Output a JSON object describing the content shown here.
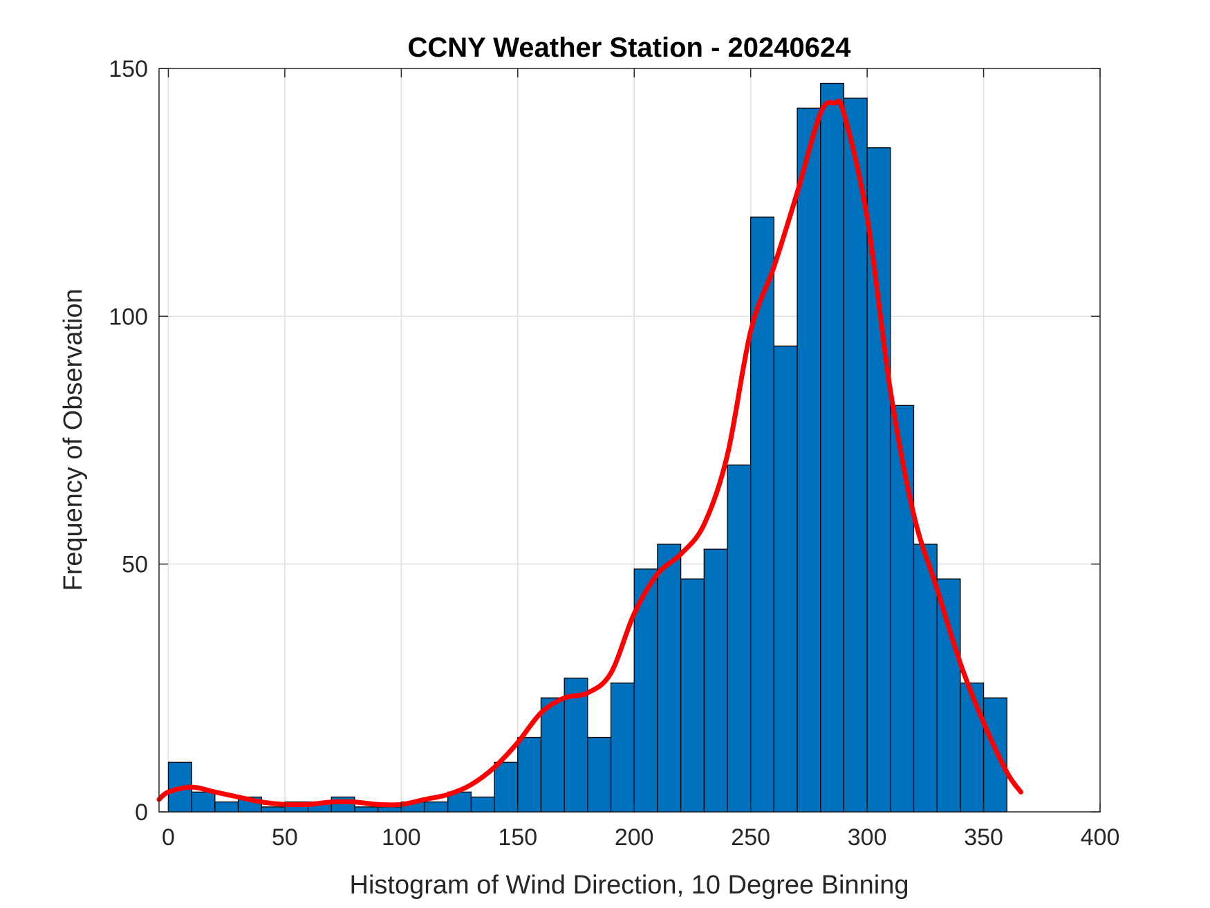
{
  "chart_data": {
    "type": "bar",
    "title": "CCNY Weather Station - 20240624",
    "xlabel": "Histogram of Wind Direction, 10 Degree Binning",
    "ylabel": "Frequency of Observation",
    "xlim": [
      -4,
      400
    ],
    "ylim": [
      0,
      150
    ],
    "xticks": [
      0,
      50,
      100,
      150,
      200,
      250,
      300,
      350,
      400
    ],
    "xtick_labels": [
      "0",
      "50",
      "100",
      "150",
      "200",
      "250",
      "300",
      "350",
      "400"
    ],
    "yticks": [
      0,
      50,
      100,
      150
    ],
    "ytick_labels": [
      "0",
      "50",
      "100",
      "150"
    ],
    "grid": true,
    "bin_width": 10,
    "bin_starts": [
      0,
      10,
      20,
      30,
      40,
      50,
      60,
      70,
      80,
      90,
      100,
      110,
      120,
      130,
      140,
      150,
      160,
      170,
      180,
      190,
      200,
      210,
      220,
      230,
      240,
      250,
      260,
      270,
      280,
      290,
      300,
      310,
      320,
      330,
      340,
      350
    ],
    "values": [
      10,
      4,
      2,
      3,
      1,
      2,
      2,
      3,
      1,
      1,
      2,
      2,
      4,
      3,
      10,
      15,
      23,
      27,
      15,
      26,
      49,
      54,
      47,
      53,
      70,
      120,
      94,
      142,
      147,
      144,
      134,
      82,
      54,
      47,
      26,
      23
    ],
    "bar_color": "#0072BD",
    "bar_edge_color": "#000000",
    "fit_curve": {
      "color": "#FF0000",
      "x": [
        -4,
        0,
        10,
        20,
        30,
        40,
        50,
        60,
        70,
        80,
        90,
        100,
        110,
        120,
        130,
        140,
        150,
        160,
        170,
        180,
        190,
        200,
        210,
        220,
        230,
        240,
        250,
        260,
        270,
        280,
        286,
        290,
        300,
        310,
        320,
        330,
        340,
        350,
        360,
        366
      ],
      "y": [
        2.5,
        4,
        5,
        4,
        3,
        2,
        1.5,
        1.5,
        2,
        2,
        1.5,
        1.5,
        2.5,
        3.5,
        5.5,
        9,
        14,
        20,
        23,
        24,
        28,
        40,
        48,
        52,
        58,
        72,
        97,
        110,
        125,
        141,
        143,
        141,
        120,
        85,
        60,
        45,
        30,
        18,
        8,
        4
      ]
    }
  }
}
